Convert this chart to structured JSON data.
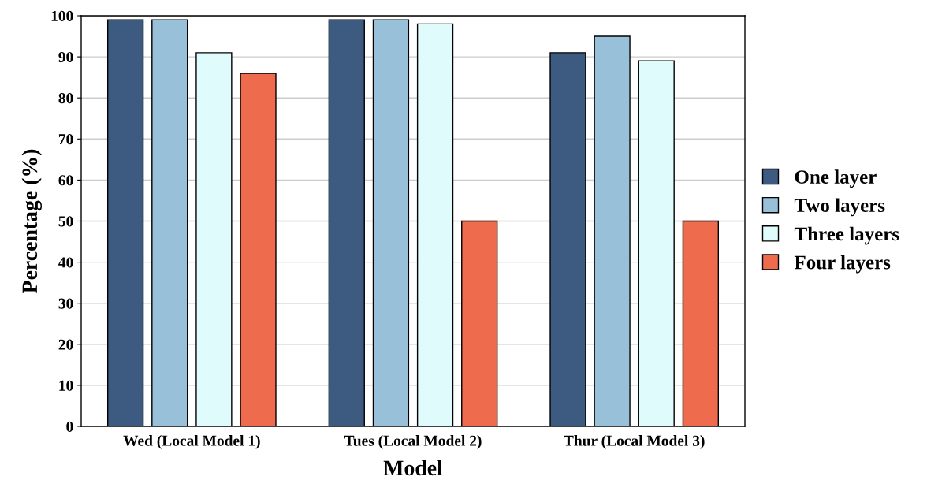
{
  "chart_data": {
    "type": "bar",
    "xlabel": "Model",
    "ylabel": "Percentage (%)",
    "categories": [
      "Wed (Local Model 1)",
      "Tues (Local Model 2)",
      "Thur (Local Model 3)"
    ],
    "series": [
      {
        "name": "One layer",
        "color": "#3d5a80",
        "values": [
          99,
          99,
          91
        ]
      },
      {
        "name": "Two layers",
        "color": "#98c1d9",
        "values": [
          99,
          99,
          95
        ]
      },
      {
        "name": "Three layers",
        "color": "#e0fbfc",
        "values": [
          91,
          98,
          89
        ]
      },
      {
        "name": "Four layers",
        "color": "#ee6c4d",
        "values": [
          86,
          50,
          50
        ]
      }
    ],
    "ylim": [
      0,
      100
    ],
    "yticks": [
      0,
      10,
      20,
      30,
      40,
      50,
      60,
      70,
      80,
      90,
      100
    ],
    "grid": "y",
    "legend": "right"
  }
}
